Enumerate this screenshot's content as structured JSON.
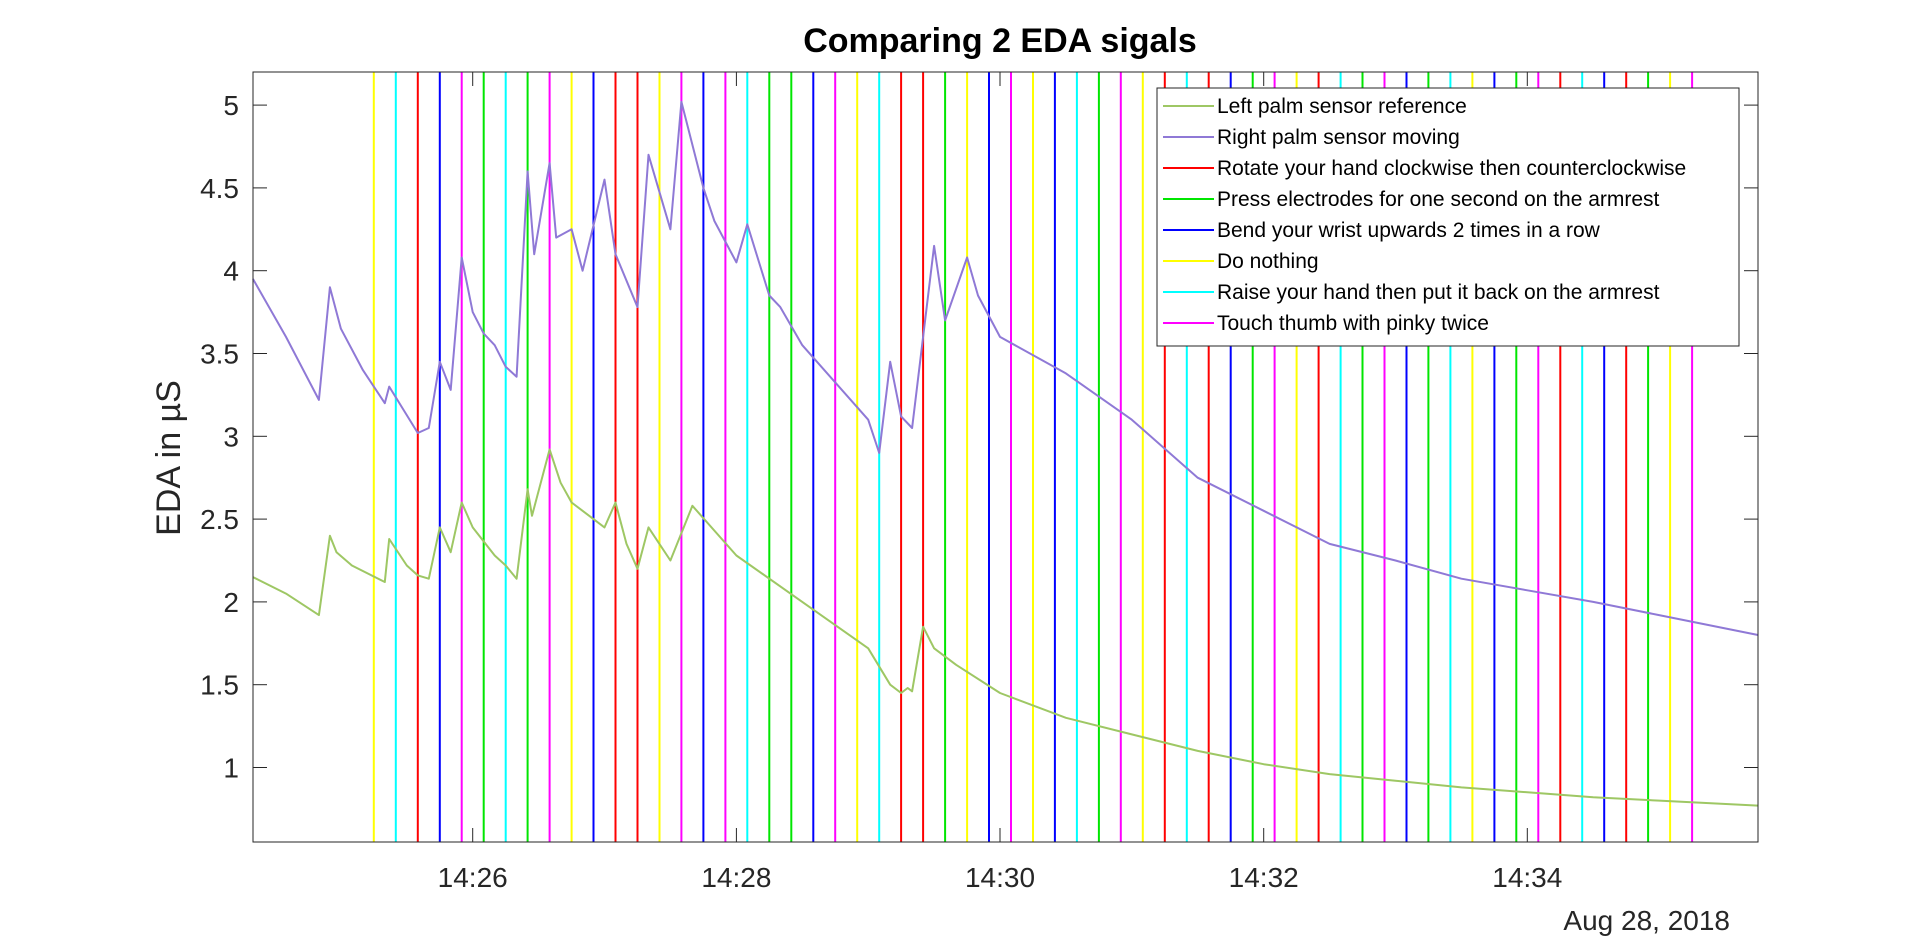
{
  "chart_data": {
    "type": "line",
    "title": "Comparing 2 EDA sigals",
    "xlabel": "",
    "ylabel": "EDA in µS",
    "date_label": "Aug 28, 2018",
    "x_unit": "time of day (HH:MM)",
    "xlim": [
      "14:24:20",
      "14:35:45"
    ],
    "ylim": [
      0.55,
      5.2
    ],
    "x_ticks": [
      "14:26",
      "14:28",
      "14:30",
      "14:32",
      "14:34"
    ],
    "y_ticks": [
      1,
      1.5,
      2,
      2.5,
      3,
      3.5,
      4,
      4.5,
      5
    ],
    "grid": false,
    "legend_position": "top-right",
    "series": [
      {
        "name": "Left palm sensor reference",
        "color": "#9ec764",
        "x": [
          "14:24:20",
          "14:24:35",
          "14:24:50",
          "14:24:55",
          "14:24:58",
          "14:25:05",
          "14:25:20",
          "14:25:22",
          "14:25:30",
          "14:25:35",
          "14:25:40",
          "14:25:45",
          "14:25:50",
          "14:25:55",
          "14:26:00",
          "14:26:10",
          "14:26:15",
          "14:26:20",
          "14:26:25",
          "14:26:27",
          "14:26:35",
          "14:26:40",
          "14:26:45",
          "14:27:00",
          "14:27:05",
          "14:27:10",
          "14:27:15",
          "14:27:20",
          "14:27:30",
          "14:27:40",
          "14:28:00",
          "14:28:30",
          "14:29:00",
          "14:29:10",
          "14:29:15",
          "14:29:18",
          "14:29:20",
          "14:29:25",
          "14:29:30",
          "14:29:40",
          "14:30:00",
          "14:30:30",
          "14:31:00",
          "14:31:30",
          "14:32:00",
          "14:32:30",
          "14:33:00",
          "14:33:30",
          "14:34:00",
          "14:34:30",
          "14:35:00",
          "14:35:45"
        ],
        "y": [
          2.15,
          2.05,
          1.92,
          2.4,
          2.3,
          2.22,
          2.12,
          2.38,
          2.22,
          2.16,
          2.14,
          2.45,
          2.3,
          2.6,
          2.45,
          2.28,
          2.22,
          2.14,
          2.68,
          2.52,
          2.92,
          2.72,
          2.6,
          2.45,
          2.6,
          2.35,
          2.2,
          2.45,
          2.25,
          2.58,
          2.28,
          2.0,
          1.72,
          1.5,
          1.45,
          1.48,
          1.46,
          1.85,
          1.72,
          1.62,
          1.45,
          1.3,
          1.2,
          1.1,
          1.02,
          0.96,
          0.92,
          0.88,
          0.85,
          0.82,
          0.8,
          0.77
        ]
      },
      {
        "name": "Right palm sensor moving",
        "color": "#8f79d6",
        "x": [
          "14:24:20",
          "14:24:35",
          "14:24:50",
          "14:24:55",
          "14:25:00",
          "14:25:10",
          "14:25:20",
          "14:25:22",
          "14:25:35",
          "14:25:40",
          "14:25:45",
          "14:25:50",
          "14:25:55",
          "14:26:00",
          "14:26:05",
          "14:26:10",
          "14:26:15",
          "14:26:20",
          "14:26:25",
          "14:26:28",
          "14:26:35",
          "14:26:38",
          "14:26:45",
          "14:26:50",
          "14:27:00",
          "14:27:05",
          "14:27:15",
          "14:27:20",
          "14:27:30",
          "14:27:35",
          "14:27:45",
          "14:27:50",
          "14:28:00",
          "14:28:05",
          "14:28:15",
          "14:28:20",
          "14:28:30",
          "14:29:00",
          "14:29:05",
          "14:29:10",
          "14:29:15",
          "14:29:20",
          "14:29:30",
          "14:29:35",
          "14:29:45",
          "14:29:50",
          "14:30:00",
          "14:30:30",
          "14:31:00",
          "14:31:30",
          "14:32:00",
          "14:32:30",
          "14:33:00",
          "14:33:30",
          "14:34:00",
          "14:34:30",
          "14:35:00",
          "14:35:45"
        ],
        "y": [
          3.95,
          3.6,
          3.22,
          3.9,
          3.65,
          3.4,
          3.2,
          3.3,
          3.02,
          3.05,
          3.45,
          3.28,
          4.08,
          3.75,
          3.62,
          3.55,
          3.42,
          3.36,
          4.6,
          4.1,
          4.65,
          4.2,
          4.25,
          4.0,
          4.55,
          4.1,
          3.78,
          4.7,
          4.25,
          5.02,
          4.5,
          4.3,
          4.05,
          4.28,
          3.85,
          3.78,
          3.55,
          3.1,
          2.9,
          3.45,
          3.12,
          3.05,
          4.15,
          3.7,
          4.08,
          3.85,
          3.6,
          3.38,
          3.1,
          2.75,
          2.55,
          2.35,
          2.25,
          2.14,
          2.07,
          2.0,
          1.92,
          1.8
        ]
      }
    ],
    "event_markers": {
      "categories": [
        {
          "name": "Rotate your hand clockwise then counterclockwise",
          "color": "#ff0000"
        },
        {
          "name": "Press electrodes for one second on the armrest",
          "color": "#00e600"
        },
        {
          "name": "Bend your wrist upwards 2 times in a row",
          "color": "#0000ff"
        },
        {
          "name": "Do nothing",
          "color": "#ffff00"
        },
        {
          "name": "Raise your hand then put it back on the armrest",
          "color": "#00ffff"
        },
        {
          "name": "Touch thumb with pinky twice",
          "color": "#ff00ff"
        }
      ],
      "events": [
        {
          "time": "14:25:15",
          "category": 3
        },
        {
          "time": "14:25:25",
          "category": 4
        },
        {
          "time": "14:25:35",
          "category": 0
        },
        {
          "time": "14:25:45",
          "category": 2
        },
        {
          "time": "14:25:55",
          "category": 5
        },
        {
          "time": "14:26:05",
          "category": 1
        },
        {
          "time": "14:26:15",
          "category": 4
        },
        {
          "time": "14:26:25",
          "category": 1
        },
        {
          "time": "14:26:35",
          "category": 5
        },
        {
          "time": "14:26:45",
          "category": 3
        },
        {
          "time": "14:26:55",
          "category": 2
        },
        {
          "time": "14:27:05",
          "category": 0
        },
        {
          "time": "14:27:15",
          "category": 0
        },
        {
          "time": "14:27:25",
          "category": 3
        },
        {
          "time": "14:27:35",
          "category": 5
        },
        {
          "time": "14:27:45",
          "category": 2
        },
        {
          "time": "14:27:55",
          "category": 5
        },
        {
          "time": "14:28:05",
          "category": 4
        },
        {
          "time": "14:28:15",
          "category": 1
        },
        {
          "time": "14:28:25",
          "category": 1
        },
        {
          "time": "14:28:35",
          "category": 2
        },
        {
          "time": "14:28:45",
          "category": 5
        },
        {
          "time": "14:28:55",
          "category": 3
        },
        {
          "time": "14:29:05",
          "category": 4
        },
        {
          "time": "14:29:15",
          "category": 0
        },
        {
          "time": "14:29:25",
          "category": 0
        },
        {
          "time": "14:29:35",
          "category": 1
        },
        {
          "time": "14:29:45",
          "category": 3
        },
        {
          "time": "14:29:55",
          "category": 2
        },
        {
          "time": "14:30:05",
          "category": 5
        },
        {
          "time": "14:30:15",
          "category": 3
        },
        {
          "time": "14:30:25",
          "category": 2
        },
        {
          "time": "14:30:35",
          "category": 4
        },
        {
          "time": "14:30:45",
          "category": 1
        },
        {
          "time": "14:30:55",
          "category": 5
        },
        {
          "time": "14:31:05",
          "category": 3
        },
        {
          "time": "14:31:15",
          "category": 0
        },
        {
          "time": "14:31:25",
          "category": 4
        },
        {
          "time": "14:31:35",
          "category": 0
        },
        {
          "time": "14:31:45",
          "category": 2
        },
        {
          "time": "14:31:55",
          "category": 1
        },
        {
          "time": "14:32:05",
          "category": 5
        },
        {
          "time": "14:32:15",
          "category": 3
        },
        {
          "time": "14:32:25",
          "category": 0
        },
        {
          "time": "14:32:35",
          "category": 4
        },
        {
          "time": "14:32:45",
          "category": 1
        },
        {
          "time": "14:32:55",
          "category": 5
        },
        {
          "time": "14:33:05",
          "category": 2
        },
        {
          "time": "14:33:15",
          "category": 1
        },
        {
          "time": "14:33:25",
          "category": 4
        },
        {
          "time": "14:33:35",
          "category": 3
        },
        {
          "time": "14:33:45",
          "category": 2
        },
        {
          "time": "14:33:55",
          "category": 1
        },
        {
          "time": "14:34:05",
          "category": 5
        },
        {
          "time": "14:34:15",
          "category": 0
        },
        {
          "time": "14:34:25",
          "category": 4
        },
        {
          "time": "14:34:35",
          "category": 2
        },
        {
          "time": "14:34:45",
          "category": 0
        },
        {
          "time": "14:34:55",
          "category": 1
        },
        {
          "time": "14:35:05",
          "category": 3
        },
        {
          "time": "14:35:15",
          "category": 5
        }
      ]
    }
  }
}
